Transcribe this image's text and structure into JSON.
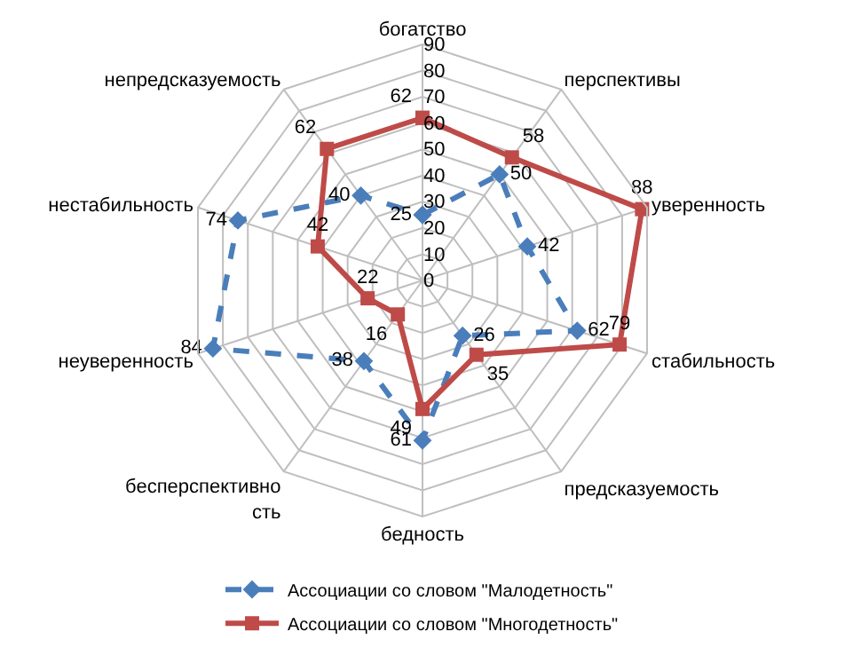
{
  "chart_data": {
    "type": "radar",
    "categories": [
      "богатство",
      "перспективы",
      "уверенность",
      "стабильность",
      "предсказуемость",
      "бедность",
      "бесперспективность",
      "неуверенность",
      "нестабильность",
      "непредсказуемость"
    ],
    "series": [
      {
        "name": "Ассоциации со словом \"Малодетность\"",
        "color": "#4a7ebb",
        "marker": "diamond",
        "line_style": "dashed",
        "values": [
          25,
          50,
          42,
          62,
          26,
          61,
          38,
          84,
          74,
          40
        ]
      },
      {
        "name": "Ассоциации со словом \"Многодетность\"",
        "color": "#be4b48",
        "marker": "square",
        "line_style": "solid",
        "values": [
          62,
          58,
          88,
          79,
          35,
          49,
          16,
          22,
          42,
          62
        ]
      }
    ],
    "ylim": [
      0,
      90
    ],
    "yticks": [
      0,
      10,
      20,
      30,
      40,
      50,
      60,
      70,
      80,
      90
    ],
    "grid": true,
    "legend": "bottom",
    "data_labels": true
  }
}
